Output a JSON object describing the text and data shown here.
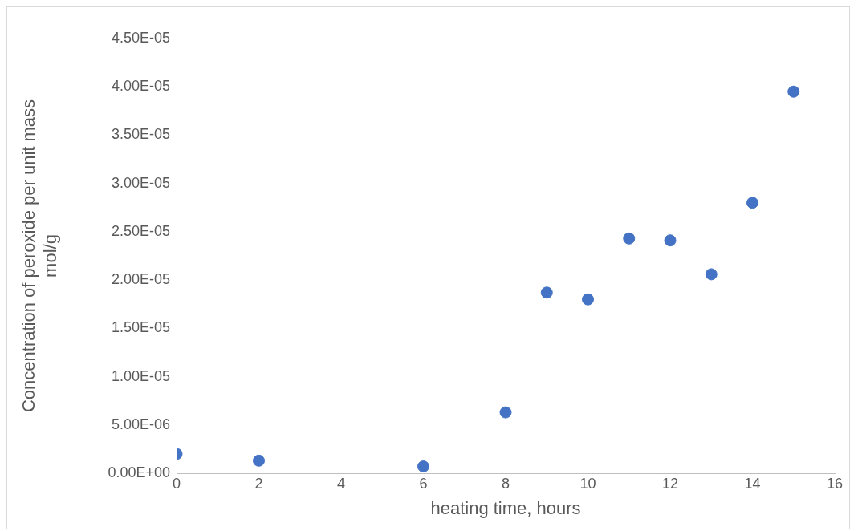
{
  "chart_data": {
    "type": "scatter",
    "xlabel": "heating time, hours",
    "ylabel": "Concentration of peroxide per unit mass mol/g",
    "x": [
      0,
      2,
      6,
      8,
      9,
      10,
      11,
      12,
      13,
      14,
      15
    ],
    "series": [
      {
        "color": "#4472c4",
        "values": [
          2e-06,
          1.3e-06,
          7e-07,
          6.3e-06,
          1.87e-05,
          1.8e-05,
          2.43e-05,
          2.41e-05,
          2.06e-05,
          2.8e-05,
          3.95e-05
        ]
      }
    ],
    "xlim": [
      0,
      16
    ],
    "xticks": [
      0,
      2,
      4,
      6,
      8,
      10,
      12,
      14,
      16
    ],
    "ylim": [
      0,
      4.5e-05
    ],
    "yticks": [
      {
        "value": 0,
        "label": "0.00E+00"
      },
      {
        "value": 5e-06,
        "label": "5.00E-06"
      },
      {
        "value": 1e-05,
        "label": "1.00E-05"
      },
      {
        "value": 1.5e-05,
        "label": "1.50E-05"
      },
      {
        "value": 2e-05,
        "label": "2.00E-05"
      },
      {
        "value": 2.5e-05,
        "label": "2.50E-05"
      },
      {
        "value": 3e-05,
        "label": "3.00E-05"
      },
      {
        "value": 3.5e-05,
        "label": "3.50E-05"
      },
      {
        "value": 4e-05,
        "label": "4.00E-05"
      },
      {
        "value": 4.5e-05,
        "label": "4.50E-05"
      }
    ],
    "grid": false,
    "legend": false,
    "marker": "circle"
  }
}
